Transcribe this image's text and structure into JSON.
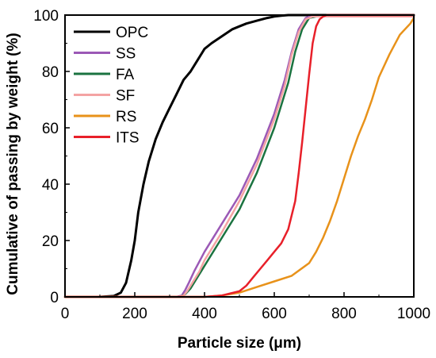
{
  "chart_data": {
    "type": "line",
    "title": "",
    "xlabel": "Particle size (μm)",
    "ylabel": "Cumulative of passing by weight (%)",
    "xlim": [
      0,
      1000
    ],
    "ylim": [
      0,
      100
    ],
    "xticks": [
      "0",
      "200",
      "400",
      "600",
      "800",
      "1000"
    ],
    "yticks": [
      "0",
      "20",
      "40",
      "60",
      "80",
      "100"
    ],
    "grid": false,
    "legend_position": "top-left",
    "series": [
      {
        "name": "OPC",
        "color": "#000000",
        "x": [
          100,
          140,
          160,
          175,
          190,
          200,
          210,
          225,
          240,
          260,
          280,
          300,
          320,
          340,
          350,
          360,
          380,
          400,
          420,
          450,
          480,
          500,
          520,
          550,
          580,
          600,
          620,
          640,
          660,
          700,
          750,
          1000
        ],
        "y": [
          0,
          0.3,
          1.5,
          5,
          13,
          20,
          30,
          40,
          48,
          56,
          62,
          67,
          72,
          77,
          78.5,
          80,
          84,
          88,
          90,
          92.5,
          95,
          96,
          97,
          98,
          99,
          99.5,
          99.8,
          100,
          100,
          100,
          100,
          100
        ]
      },
      {
        "name": "SS",
        "color": "#9b59b6",
        "x": [
          0,
          320,
          335,
          345,
          355,
          370,
          400,
          450,
          500,
          550,
          600,
          630,
          650,
          670,
          690,
          700,
          720,
          1000
        ],
        "y": [
          0,
          0,
          0.5,
          2.5,
          5,
          9,
          16,
          26,
          36,
          49,
          65,
          77,
          87,
          95,
          99,
          99.5,
          99.5,
          99.5
        ]
      },
      {
        "name": "FA",
        "color": "#1b7340",
        "x": [
          0,
          330,
          345,
          360,
          380,
          400,
          450,
          500,
          550,
          600,
          640,
          660,
          680,
          700,
          720,
          1000
        ],
        "y": [
          0,
          0,
          1,
          3,
          7,
          11,
          21,
          31,
          44,
          60,
          76,
          87,
          95,
          99,
          99.5,
          99.5
        ]
      },
      {
        "name": "SF",
        "color": "#f4a3a3",
        "x": [
          0,
          325,
          340,
          350,
          365,
          385,
          400,
          450,
          500,
          550,
          600,
          630,
          650,
          670,
          690,
          710,
          1000
        ],
        "y": [
          0,
          0,
          0.5,
          2,
          5,
          9,
          13,
          23,
          34,
          47,
          63,
          75,
          86,
          94,
          98.5,
          99.5,
          99.5
        ]
      },
      {
        "name": "RS",
        "color": "#e8921a",
        "x": [
          0,
          400,
          450,
          500,
          550,
          600,
          650,
          700,
          720,
          740,
          760,
          780,
          800,
          820,
          840,
          860,
          880,
          900,
          930,
          960,
          990,
          1000
        ],
        "y": [
          0,
          0,
          0.5,
          1.5,
          3.5,
          5.5,
          7.5,
          12,
          16,
          21,
          27,
          34,
          42,
          50,
          57,
          63,
          70,
          78,
          86,
          93,
          97,
          99
        ]
      },
      {
        "name": "ITS",
        "color": "#e8202a",
        "x": [
          0,
          400,
          450,
          500,
          520,
          540,
          560,
          580,
          600,
          620,
          640,
          660,
          670,
          680,
          690,
          700,
          710,
          720,
          730,
          740,
          750,
          760,
          1000
        ],
        "y": [
          0,
          0,
          0.5,
          2,
          4,
          7,
          10,
          13,
          16,
          19,
          24,
          34,
          44,
          55,
          67,
          79,
          90,
          96,
          98.5,
          99.5,
          100,
          100,
          100
        ]
      }
    ]
  }
}
